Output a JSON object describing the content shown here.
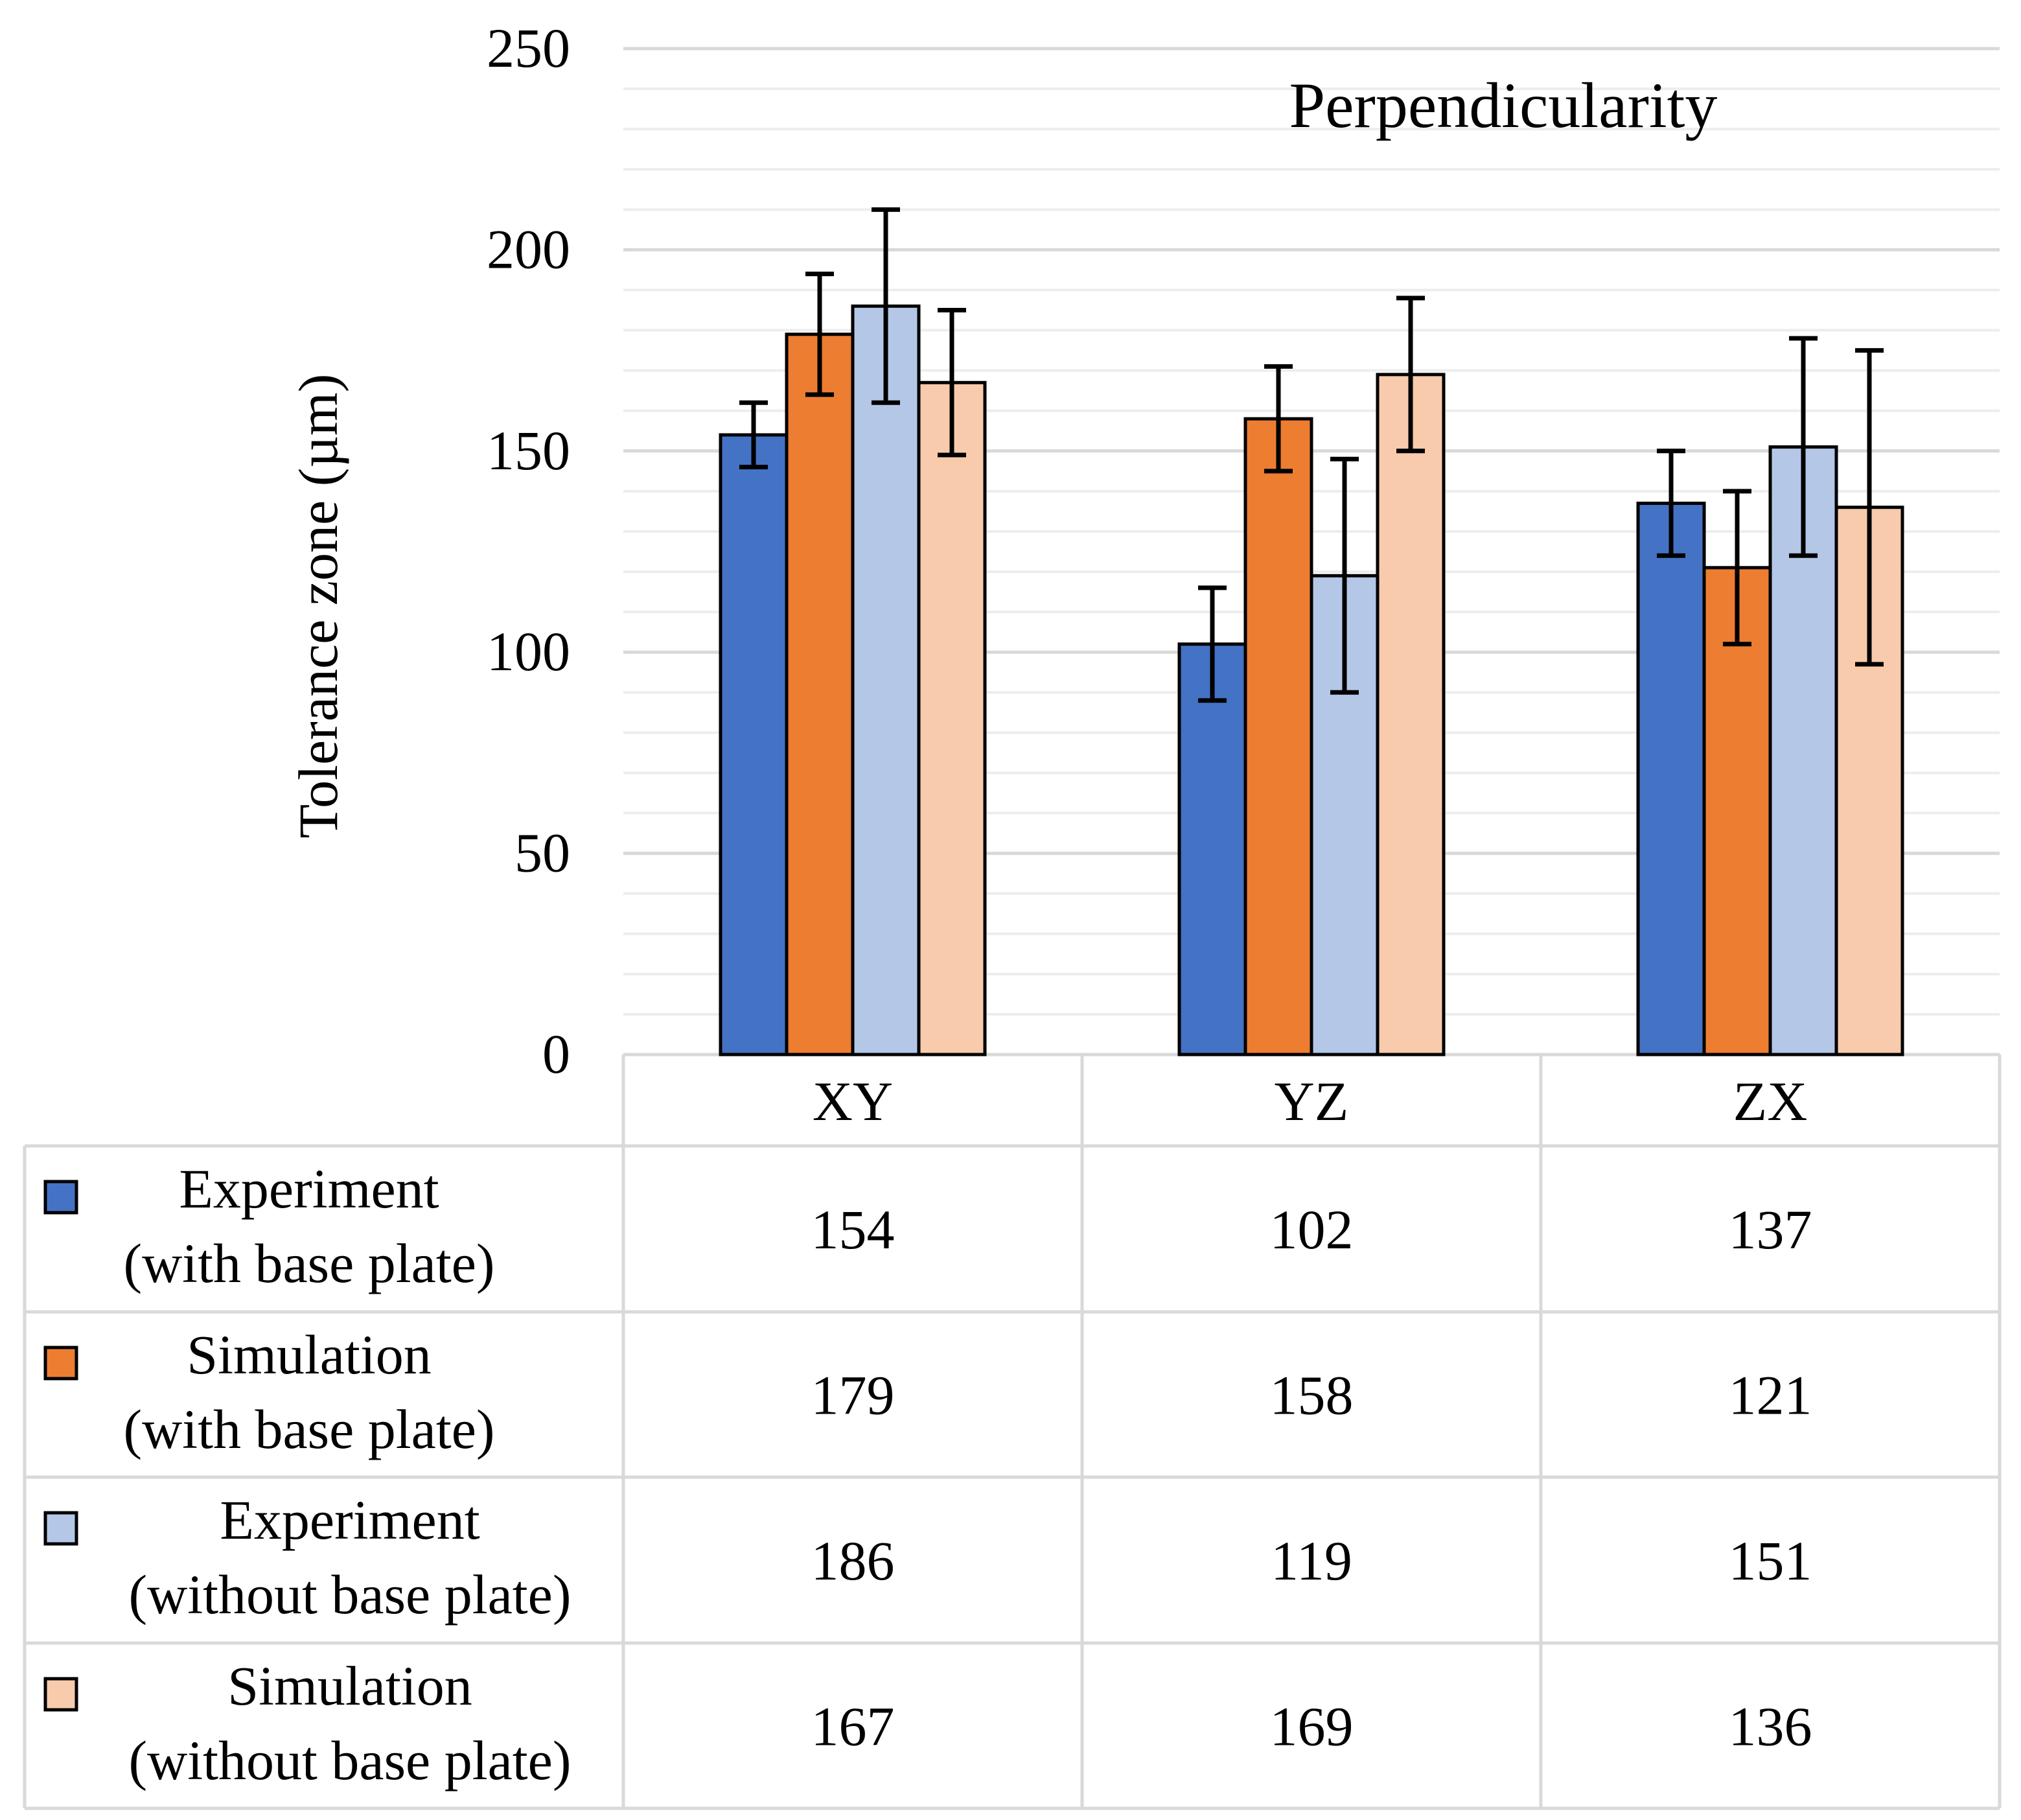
{
  "chart_data": {
    "type": "bar",
    "title": "Perpendicularity",
    "xlabel": "",
    "ylabel": "Tolerance zone (µm)",
    "ylim": [
      0,
      250
    ],
    "yticks": [
      0,
      50,
      100,
      150,
      200,
      250
    ],
    "minor_grid_step": 10,
    "grid": true,
    "legend_placement": "data-table-left",
    "categories": [
      "XY",
      "YZ",
      "ZX"
    ],
    "series": [
      {
        "name": "Experiment (with base plate)",
        "label_lines": [
          "Experiment",
          "(with base plate)"
        ],
        "color": "#4472C4",
        "values": [
          154,
          102,
          137
        ],
        "error_low": [
          146,
          88,
          124
        ],
        "error_high": [
          162,
          116,
          150
        ],
        "table_text": [
          "154",
          "102",
          "137"
        ]
      },
      {
        "name": "Simulation (with base plate)",
        "label_lines": [
          "Simulation",
          "(with base plate)"
        ],
        "color": "#ED7D31",
        "values": [
          179,
          158,
          121
        ],
        "error_low": [
          164,
          145,
          102
        ],
        "error_high": [
          194,
          171,
          140
        ],
        "table_text": [
          "179",
          "158",
          "121"
        ]
      },
      {
        "name": "Experiment (without base plate)",
        "label_lines": [
          "Experiment",
          "(without base plate)"
        ],
        "color": "#B4C7E7",
        "values": [
          186,
          119,
          151
        ],
        "error_low": [
          162,
          90,
          124
        ],
        "error_high": [
          210,
          148,
          178
        ],
        "table_text": [
          "186",
          "119",
          "151"
        ]
      },
      {
        "name": "Simulation (without base plate)",
        "label_lines": [
          "Simulation",
          "(without base plate)"
        ],
        "color": "#F8CBAD",
        "values": [
          167,
          169,
          136
        ],
        "error_low": [
          149,
          150,
          97
        ],
        "error_high": [
          185,
          188,
          175
        ],
        "table_text": [
          "167",
          "169",
          "136"
        ]
      }
    ]
  }
}
